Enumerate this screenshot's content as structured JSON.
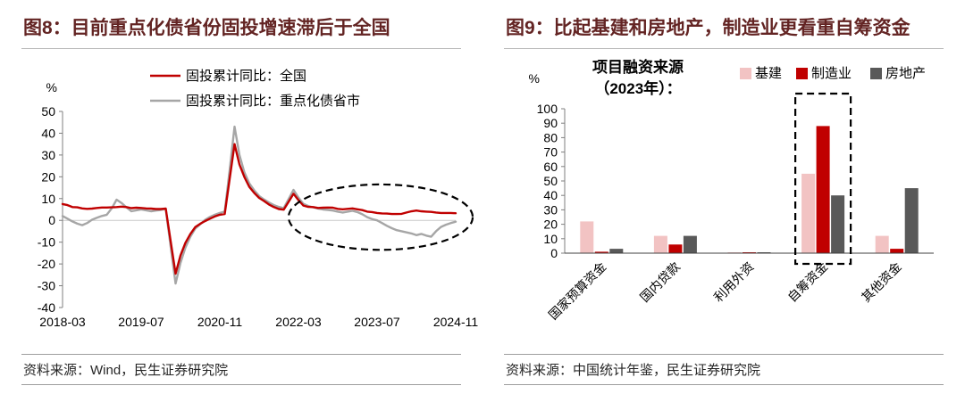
{
  "page": {
    "background": "#ffffff"
  },
  "figure8": {
    "title": "图8：目前重点化债省份固投增速滞后于全国",
    "source": "资料来源：Wind，民生证券研究院"
  },
  "figure9": {
    "title": "图9：比起基建和房地产，制造业更看重自筹资金",
    "source": "资料来源：中国统计年鉴，民生证券研究院"
  },
  "colors": {
    "title_text": "#632423",
    "national_line": "#c00000",
    "key_provinces_line": "#a6a6a6",
    "infrastructure_bar": "#f2c3c3",
    "manufacturing_bar": "#c00000",
    "real_estate_bar": "#595959"
  },
  "chart_data": [
    {
      "type": "line",
      "panel": "图8",
      "ylabel": "%",
      "ylim": [
        -40,
        50
      ],
      "yticks": [
        50,
        40,
        30,
        20,
        10,
        0,
        -10,
        -20,
        -30,
        -40
      ],
      "x_start": "2018-03",
      "x_end": "2024-11",
      "x_freq": "monthly",
      "xtick_labels": [
        "2018-03",
        "2019-07",
        "2020-11",
        "2022-03",
        "2023-07",
        "2024-11"
      ],
      "xtick_indices": [
        0,
        16,
        32,
        48,
        64,
        80
      ],
      "grid": false,
      "legend_position": "top-center",
      "series": [
        {
          "name": "固投累计同比：全国",
          "color": "#c00000",
          "values": [
            7.5,
            7.0,
            6.1,
            6.0,
            5.5,
            5.3,
            5.4,
            5.7,
            5.9,
            5.9,
            6.0,
            6.1,
            6.3,
            6.1,
            5.6,
            5.8,
            5.7,
            5.5,
            5.4,
            5.2,
            5.2,
            5.4,
            -9.6,
            -24.5,
            -16.1,
            -10.3,
            -6.3,
            -3.1,
            -1.6,
            -0.3,
            0.8,
            1.8,
            2.6,
            2.9,
            19.0,
            35.0,
            25.6,
            19.9,
            15.4,
            12.6,
            10.3,
            8.9,
            7.3,
            6.1,
            5.2,
            4.9,
            8.5,
            12.2,
            9.3,
            6.8,
            6.2,
            6.1,
            5.7,
            5.8,
            5.9,
            5.8,
            5.3,
            5.1,
            5.3,
            5.5,
            5.1,
            4.7,
            4.0,
            3.8,
            3.4,
            3.2,
            3.1,
            2.9,
            2.9,
            3.0,
            3.6,
            4.2,
            4.5,
            4.2,
            4.0,
            3.9,
            3.6,
            3.4,
            3.4,
            3.4,
            3.3
          ]
        },
        {
          "name": "固投累计同比：重点化债省市",
          "color": "#a6a6a6",
          "values": [
            2.0,
            0.8,
            -0.5,
            -1.5,
            -2.2,
            -1.2,
            0.3,
            1.2,
            2.0,
            2.6,
            5.5,
            9.5,
            8.0,
            6.0,
            4.2,
            4.6,
            5.0,
            4.6,
            4.2,
            4.5,
            4.8,
            5.2,
            -12.0,
            -29.0,
            -19.5,
            -12.5,
            -7.5,
            -3.8,
            -1.8,
            0.2,
            1.6,
            2.6,
            3.4,
            4.0,
            23.0,
            43.0,
            30.0,
            22.0,
            17.0,
            13.8,
            11.2,
            9.6,
            8.2,
            7.0,
            6.2,
            5.6,
            9.8,
            14.0,
            10.5,
            7.6,
            6.6,
            6.0,
            5.4,
            5.0,
            4.8,
            4.5,
            4.0,
            3.6,
            4.0,
            4.4,
            3.8,
            2.8,
            1.5,
            0.6,
            0.0,
            -1.2,
            -2.5,
            -3.6,
            -4.5,
            -5.0,
            -5.5,
            -6.0,
            -6.8,
            -6.2,
            -7.0,
            -7.5,
            -5.0,
            -3.0,
            -2.0,
            -1.2,
            -0.6
          ]
        }
      ],
      "annotation": {
        "shape": "dashed-ellipse",
        "x_center_frac": 0.809,
        "y_center": 1.5,
        "x_half_frac": 0.234,
        "y_half": 15
      }
    },
    {
      "type": "bar",
      "panel": "图9",
      "title_lines": [
        "项目融资来源",
        "（2023年）："
      ],
      "ylabel": "%",
      "ylim": [
        0,
        100
      ],
      "yticks": [
        100,
        90,
        80,
        70,
        60,
        50,
        40,
        30,
        20,
        10,
        0
      ],
      "categories": [
        "国家预算资金",
        "国内贷款",
        "利用外资",
        "自筹资金",
        "其他资金"
      ],
      "series": [
        {
          "name": "基建",
          "color": "#f2c3c3",
          "values": [
            22,
            12,
            0.5,
            55,
            12
          ]
        },
        {
          "name": "制造业",
          "color": "#c00000",
          "values": [
            1,
            6,
            0.3,
            88,
            3
          ]
        },
        {
          "name": "房地产",
          "color": "#595959",
          "values": [
            3,
            12,
            0.5,
            40,
            45
          ]
        }
      ],
      "legend_position": "top-right",
      "grid": false,
      "highlight": {
        "shape": "dashed-rect",
        "category": "自筹资金"
      }
    }
  ]
}
